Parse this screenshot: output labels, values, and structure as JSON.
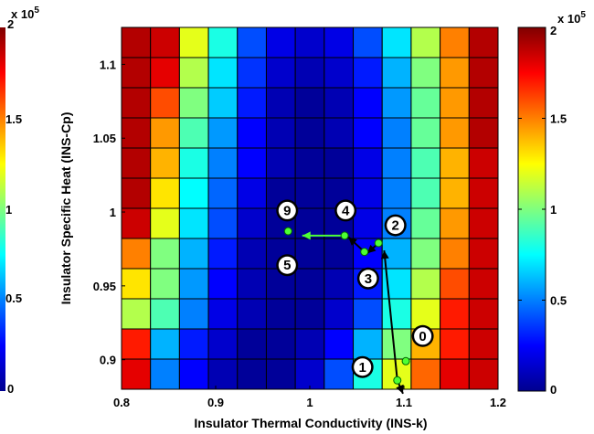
{
  "chart_data": {
    "type": "heatmap",
    "xlabel": "Insulator Thermal Conductivity (INS-k)",
    "ylabel": "Insulator Specific Heat (INS-Cp)",
    "xlim": [
      0.8,
      1.2
    ],
    "ylim": [
      0.88,
      1.125
    ],
    "x_ticks": [
      "0.8",
      "0.9",
      "1",
      "1.1",
      "1.2"
    ],
    "y_ticks": [
      "0.9",
      "0.95",
      "1",
      "1.05",
      "1.1"
    ],
    "colorbar": {
      "min": 0,
      "max": 200000,
      "ticks": [
        "0",
        "0.5",
        "1",
        "1.5",
        "2"
      ],
      "multiplier": "x 10",
      "exponent": "5",
      "colormap": "jet"
    },
    "grid_cols": 13,
    "grid_rows": 12,
    "values": [
      [
        19,
        18.5,
        12,
        8,
        4,
        2,
        1.5,
        2,
        4,
        7,
        11,
        15,
        19
      ],
      [
        19,
        18,
        11,
        7,
        3.5,
        1.5,
        1,
        1.5,
        3,
        6,
        10,
        14.5,
        19
      ],
      [
        19,
        16,
        10,
        6.5,
        3,
        1,
        0.5,
        1,
        2.5,
        5.5,
        9.5,
        14.5,
        19
      ],
      [
        19,
        14.5,
        9,
        5.5,
        2.5,
        1,
        0.5,
        1,
        2.5,
        5,
        9.5,
        14.5,
        19
      ],
      [
        19,
        14,
        8,
        5,
        2.5,
        1,
        0.5,
        0.5,
        2,
        5,
        9,
        14,
        18.5
      ],
      [
        19,
        13,
        7.5,
        4.5,
        2,
        0.5,
        0.5,
        0.5,
        2,
        5,
        9,
        14,
        18.5
      ],
      [
        18.5,
        12,
        7,
        4,
        1.5,
        0.5,
        0.5,
        0.5,
        2,
        5,
        9.5,
        14.5,
        18.5
      ],
      [
        15,
        10,
        6,
        3,
        1,
        0.5,
        0.5,
        0.5,
        2.5,
        6,
        10,
        15,
        18.5
      ],
      [
        13,
        10,
        5.5,
        2.5,
        1,
        0.5,
        0.5,
        1,
        3,
        7,
        11,
        16,
        18.5
      ],
      [
        11,
        9,
        5,
        2,
        1,
        0.5,
        0.5,
        1.5,
        4,
        8,
        12,
        17,
        18.5
      ],
      [
        17,
        6,
        3,
        1.5,
        0.5,
        0.5,
        1,
        2.5,
        6,
        10,
        14,
        17,
        18.5
      ],
      [
        18,
        5,
        2.5,
        1,
        0.5,
        0.5,
        1.5,
        4,
        8,
        12,
        15.5,
        18,
        18.5
      ]
    ],
    "path_points": [
      {
        "label": "0",
        "x": 1.102,
        "y": 0.899
      },
      {
        "label": "1",
        "x": 1.093,
        "y": 0.886
      },
      {
        "label": "2",
        "x": 1.073,
        "y": 0.979
      },
      {
        "label": "3",
        "x": 1.058,
        "y": 0.973
      },
      {
        "label": "4",
        "x": 1.037,
        "y": 0.984
      },
      {
        "label": "9",
        "x": 0.977,
        "y": 0.987
      }
    ],
    "badges": [
      {
        "label": "9",
        "x": 0.976,
        "y": 1.001
      },
      {
        "label": "5",
        "x": 0.976,
        "y": 0.964
      },
      {
        "label": "4",
        "x": 1.038,
        "y": 1.001
      },
      {
        "label": "2",
        "x": 1.091,
        "y": 0.991
      },
      {
        "label": "3",
        "x": 1.062,
        "y": 0.955
      },
      {
        "label": "0",
        "x": 1.12,
        "y": 0.916
      },
      {
        "label": "1",
        "x": 1.056,
        "y": 0.895
      }
    ],
    "arrows": [
      {
        "from": [
          1.093,
          0.886
        ],
        "to": [
          1.099,
          0.877
        ],
        "color": "#000000"
      },
      {
        "from": [
          1.093,
          0.886
        ],
        "to": [
          1.079,
          0.974
        ],
        "color": "#000000"
      },
      {
        "from": [
          1.073,
          0.979
        ],
        "to": [
          1.061,
          0.972
        ],
        "color": "#000000"
      },
      {
        "from": [
          1.058,
          0.973
        ],
        "to": [
          1.041,
          0.983
        ],
        "color": "#000000"
      },
      {
        "from": [
          1.037,
          0.984
        ],
        "to": [
          0.992,
          0.984
        ],
        "color": "#4dff33"
      }
    ]
  }
}
